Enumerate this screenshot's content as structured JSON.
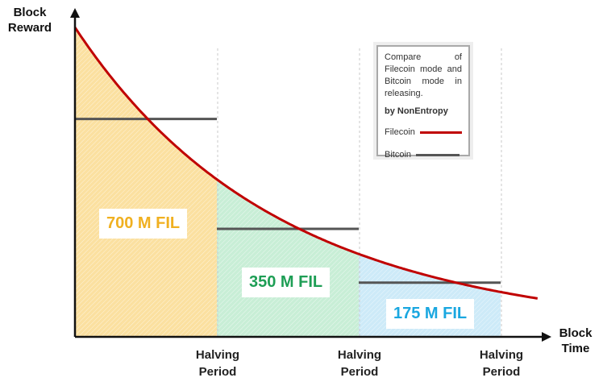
{
  "chart_data": {
    "type": "area",
    "title": "",
    "ylabel": "Block\nReward",
    "xlabel": "Block\nTime",
    "x_ticks": [
      "Halving\nPeriod",
      "Halving\nPeriod",
      "Halving\nPeriod"
    ],
    "periods": 3,
    "filecoin_curve": {
      "name": "Filecoin",
      "color": "#c00000",
      "start_value": 1.0,
      "end_value": 0.124,
      "decay_per_period": 0.5
    },
    "bitcoin_steps": {
      "name": "Bitcoin",
      "color": "#555555",
      "values": [
        0.704,
        0.349,
        0.175
      ]
    },
    "areas": [
      {
        "label": "700 M FIL",
        "label_color": "#f0b020",
        "fill": "#fbe0a0"
      },
      {
        "label": "350 M FIL",
        "label_color": "#1e9e55",
        "fill": "#c8eed6"
      },
      {
        "label": "175 M FIL",
        "label_color": "#1aa7e0",
        "fill": "#cdeaf8"
      }
    ],
    "legend": {
      "position": "top-right",
      "description": "Compare of Filecoin mode and Bitcoin mode in releasing.",
      "author": "by NonEntropy",
      "entries": [
        {
          "label": "Filecoin",
          "color": "#c00000"
        },
        {
          "label": "Bitcoin",
          "color": "#555555"
        }
      ]
    }
  }
}
